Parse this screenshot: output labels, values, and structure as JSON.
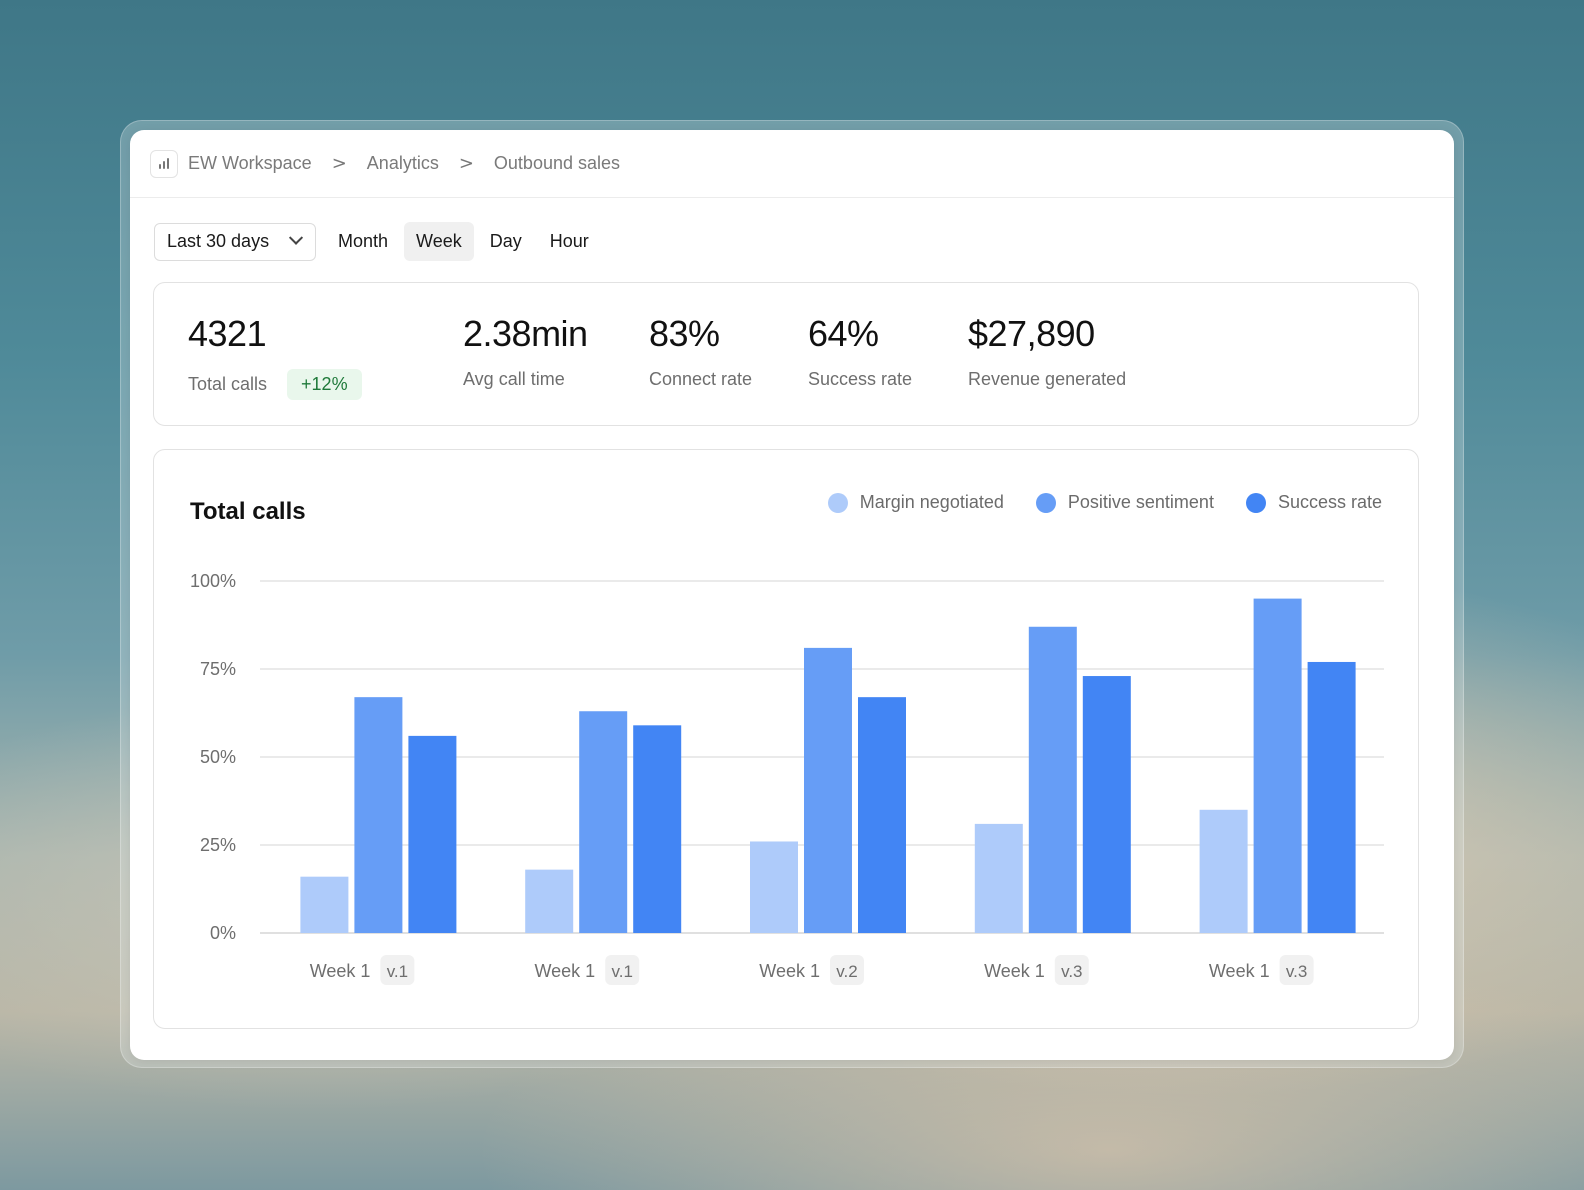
{
  "breadcrumb": [
    "EW Workspace",
    "Analytics",
    "Outbound sales"
  ],
  "breadcrumb_separator": ">",
  "filters": {
    "range_select": "Last 30 days",
    "granularity": [
      "Month",
      "Week",
      "Day",
      "Hour"
    ],
    "active_granularity": "Week"
  },
  "stats": [
    {
      "value": "4321",
      "label": "Total calls",
      "badge": "+12%"
    },
    {
      "value": "2.38min",
      "label": "Avg call time"
    },
    {
      "value": "83%",
      "label": "Connect rate"
    },
    {
      "value": "64%",
      "label": "Success rate"
    },
    {
      "value": "$27,890",
      "label": "Revenue generated"
    }
  ],
  "colors": {
    "margin": "#aecbfa",
    "positive": "#669df6",
    "success": "#4285f4",
    "badge_bg": "#e9f7ec",
    "badge_text": "#1f7a3a"
  },
  "chart_data": {
    "type": "bar",
    "title": "Total calls",
    "categories": [
      {
        "label": "Week 1",
        "version": "v.1"
      },
      {
        "label": "Week 1",
        "version": "v.1"
      },
      {
        "label": "Week 1",
        "version": "v.2"
      },
      {
        "label": "Week 1",
        "version": "v.3"
      },
      {
        "label": "Week 1",
        "version": "v.3"
      }
    ],
    "series": [
      {
        "name": "Margin negotiated",
        "color": "#aecbfa",
        "values": [
          16,
          18,
          26,
          31,
          35
        ]
      },
      {
        "name": "Positive sentiment",
        "color": "#669df6",
        "values": [
          67,
          63,
          81,
          87,
          95
        ]
      },
      {
        "name": "Success rate",
        "color": "#4285f4",
        "values": [
          56,
          59,
          67,
          73,
          77
        ]
      }
    ],
    "yticks": [
      "100%",
      "75%",
      "50%",
      "25%",
      "0%"
    ],
    "ylim": [
      0,
      100
    ],
    "grid": true,
    "legend_position": "top-right"
  }
}
